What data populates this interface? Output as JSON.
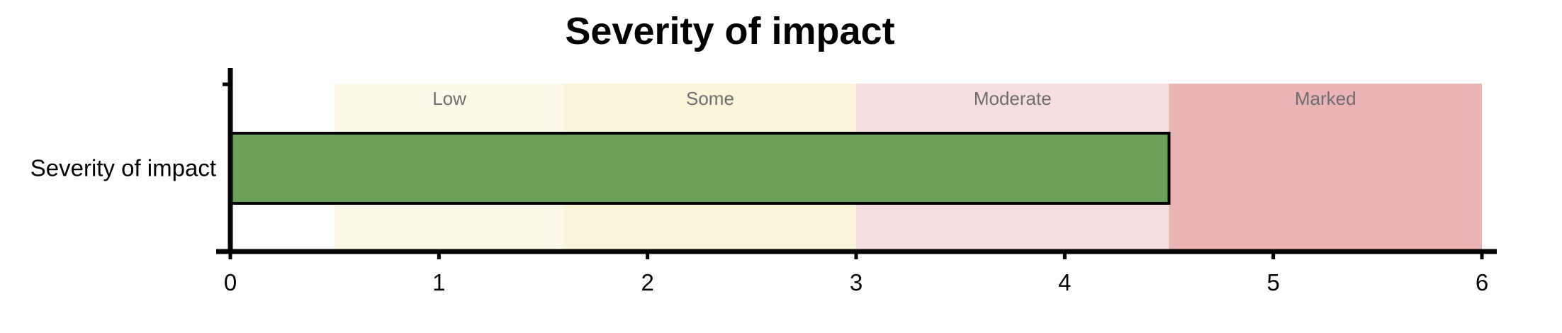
{
  "chart_data": {
    "type": "bar",
    "orientation": "horizontal",
    "title": "Severity of impact",
    "xlabel": "",
    "ylabel": "",
    "categories": [
      "Severity of impact"
    ],
    "values": [
      4.5
    ],
    "xlim": [
      0,
      6
    ],
    "xticks": [
      0,
      1,
      2,
      3,
      4,
      5,
      6
    ],
    "bar_color": "#6aa15a",
    "bar_edge_color": "#000000",
    "grid": false,
    "bands": [
      {
        "label": "Low",
        "start": 0.5,
        "end": 1.6,
        "color": "#fdf9e9"
      },
      {
        "label": "Some",
        "start": 1.6,
        "end": 3.0,
        "color": "#faf4d8"
      },
      {
        "label": "Moderate",
        "start": 3.0,
        "end": 4.5,
        "color": "#f6dede"
      },
      {
        "label": "Marked",
        "start": 4.5,
        "end": 6.0,
        "color": "#e9b4b3"
      }
    ]
  }
}
